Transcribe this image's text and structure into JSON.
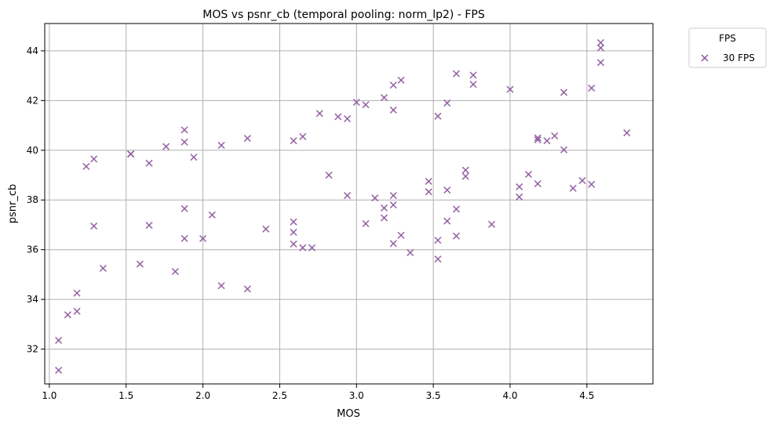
{
  "chart_data": {
    "type": "scatter",
    "title": "MOS vs psnr_cb (temporal pooling: norm_lp2) - FPS",
    "xlabel": "MOS",
    "ylabel": "psnr_cb",
    "xlim": [
      0.97,
      4.93
    ],
    "ylim": [
      30.6,
      45.1
    ],
    "xticks": [
      1.0,
      1.5,
      2.0,
      2.5,
      3.0,
      3.5,
      4.0,
      4.5
    ],
    "xtick_labels": [
      "1.0",
      "1.5",
      "2.0",
      "2.5",
      "3.0",
      "3.5",
      "4.0",
      "4.5"
    ],
    "yticks": [
      32,
      34,
      36,
      38,
      40,
      42,
      44
    ],
    "ytick_labels": [
      "32",
      "34",
      "36",
      "38",
      "40",
      "42",
      "44"
    ],
    "grid": true,
    "marker": "x",
    "legend": {
      "title": "FPS",
      "placement": "outside-top-right",
      "entries": [
        "30 FPS"
      ]
    },
    "series": [
      {
        "name": "30 FPS",
        "color": "#8e5a9e",
        "points": [
          [
            1.06,
            31.15
          ],
          [
            1.06,
            32.35
          ],
          [
            1.12,
            33.38
          ],
          [
            1.18,
            33.52
          ],
          [
            1.18,
            34.25
          ],
          [
            1.24,
            39.35
          ],
          [
            1.29,
            39.65
          ],
          [
            1.29,
            36.95
          ],
          [
            1.35,
            35.25
          ],
          [
            1.53,
            39.85
          ],
          [
            1.53,
            39.85
          ],
          [
            1.59,
            35.42
          ],
          [
            1.65,
            39.48
          ],
          [
            1.65,
            36.98
          ],
          [
            1.76,
            40.15
          ],
          [
            1.82,
            35.12
          ],
          [
            1.88,
            40.82
          ],
          [
            1.88,
            40.33
          ],
          [
            1.88,
            37.65
          ],
          [
            1.88,
            36.45
          ],
          [
            1.94,
            39.72
          ],
          [
            2.0,
            36.45
          ],
          [
            2.06,
            37.4
          ],
          [
            2.12,
            40.2
          ],
          [
            2.12,
            34.55
          ],
          [
            2.29,
            40.48
          ],
          [
            2.29,
            34.42
          ],
          [
            2.41,
            36.83
          ],
          [
            2.59,
            40.38
          ],
          [
            2.59,
            37.12
          ],
          [
            2.59,
            36.7
          ],
          [
            2.59,
            36.23
          ],
          [
            2.65,
            40.55
          ],
          [
            2.65,
            36.08
          ],
          [
            2.71,
            36.08
          ],
          [
            2.76,
            41.48
          ],
          [
            2.82,
            39.0
          ],
          [
            2.88,
            41.35
          ],
          [
            2.94,
            41.27
          ],
          [
            2.94,
            38.18
          ],
          [
            3.0,
            41.93
          ],
          [
            3.06,
            41.83
          ],
          [
            3.06,
            37.05
          ],
          [
            3.12,
            38.08
          ],
          [
            3.18,
            42.12
          ],
          [
            3.18,
            37.68
          ],
          [
            3.18,
            37.28
          ],
          [
            3.24,
            42.62
          ],
          [
            3.24,
            41.62
          ],
          [
            3.24,
            38.18
          ],
          [
            3.24,
            37.8
          ],
          [
            3.24,
            36.25
          ],
          [
            3.29,
            42.82
          ],
          [
            3.29,
            36.58
          ],
          [
            3.35,
            35.88
          ],
          [
            3.47,
            38.75
          ],
          [
            3.47,
            38.33
          ],
          [
            3.53,
            41.37
          ],
          [
            3.53,
            36.38
          ],
          [
            3.53,
            35.62
          ],
          [
            3.59,
            41.9
          ],
          [
            3.59,
            38.4
          ],
          [
            3.59,
            37.15
          ],
          [
            3.65,
            43.08
          ],
          [
            3.65,
            37.63
          ],
          [
            3.65,
            36.55
          ],
          [
            3.71,
            39.2
          ],
          [
            3.71,
            38.95
          ],
          [
            3.76,
            43.02
          ],
          [
            3.76,
            42.65
          ],
          [
            3.88,
            37.02
          ],
          [
            4.0,
            42.45
          ],
          [
            4.06,
            38.53
          ],
          [
            4.06,
            38.12
          ],
          [
            4.12,
            39.03
          ],
          [
            4.18,
            40.5
          ],
          [
            4.18,
            40.42
          ],
          [
            4.18,
            38.65
          ],
          [
            4.24,
            40.38
          ],
          [
            4.29,
            40.58
          ],
          [
            4.35,
            42.33
          ],
          [
            4.35,
            40.02
          ],
          [
            4.41,
            38.47
          ],
          [
            4.47,
            38.78
          ],
          [
            4.53,
            42.5
          ],
          [
            4.53,
            38.63
          ],
          [
            4.59,
            44.33
          ],
          [
            4.59,
            44.12
          ],
          [
            4.59,
            43.53
          ],
          [
            4.76,
            40.7
          ]
        ]
      }
    ]
  }
}
